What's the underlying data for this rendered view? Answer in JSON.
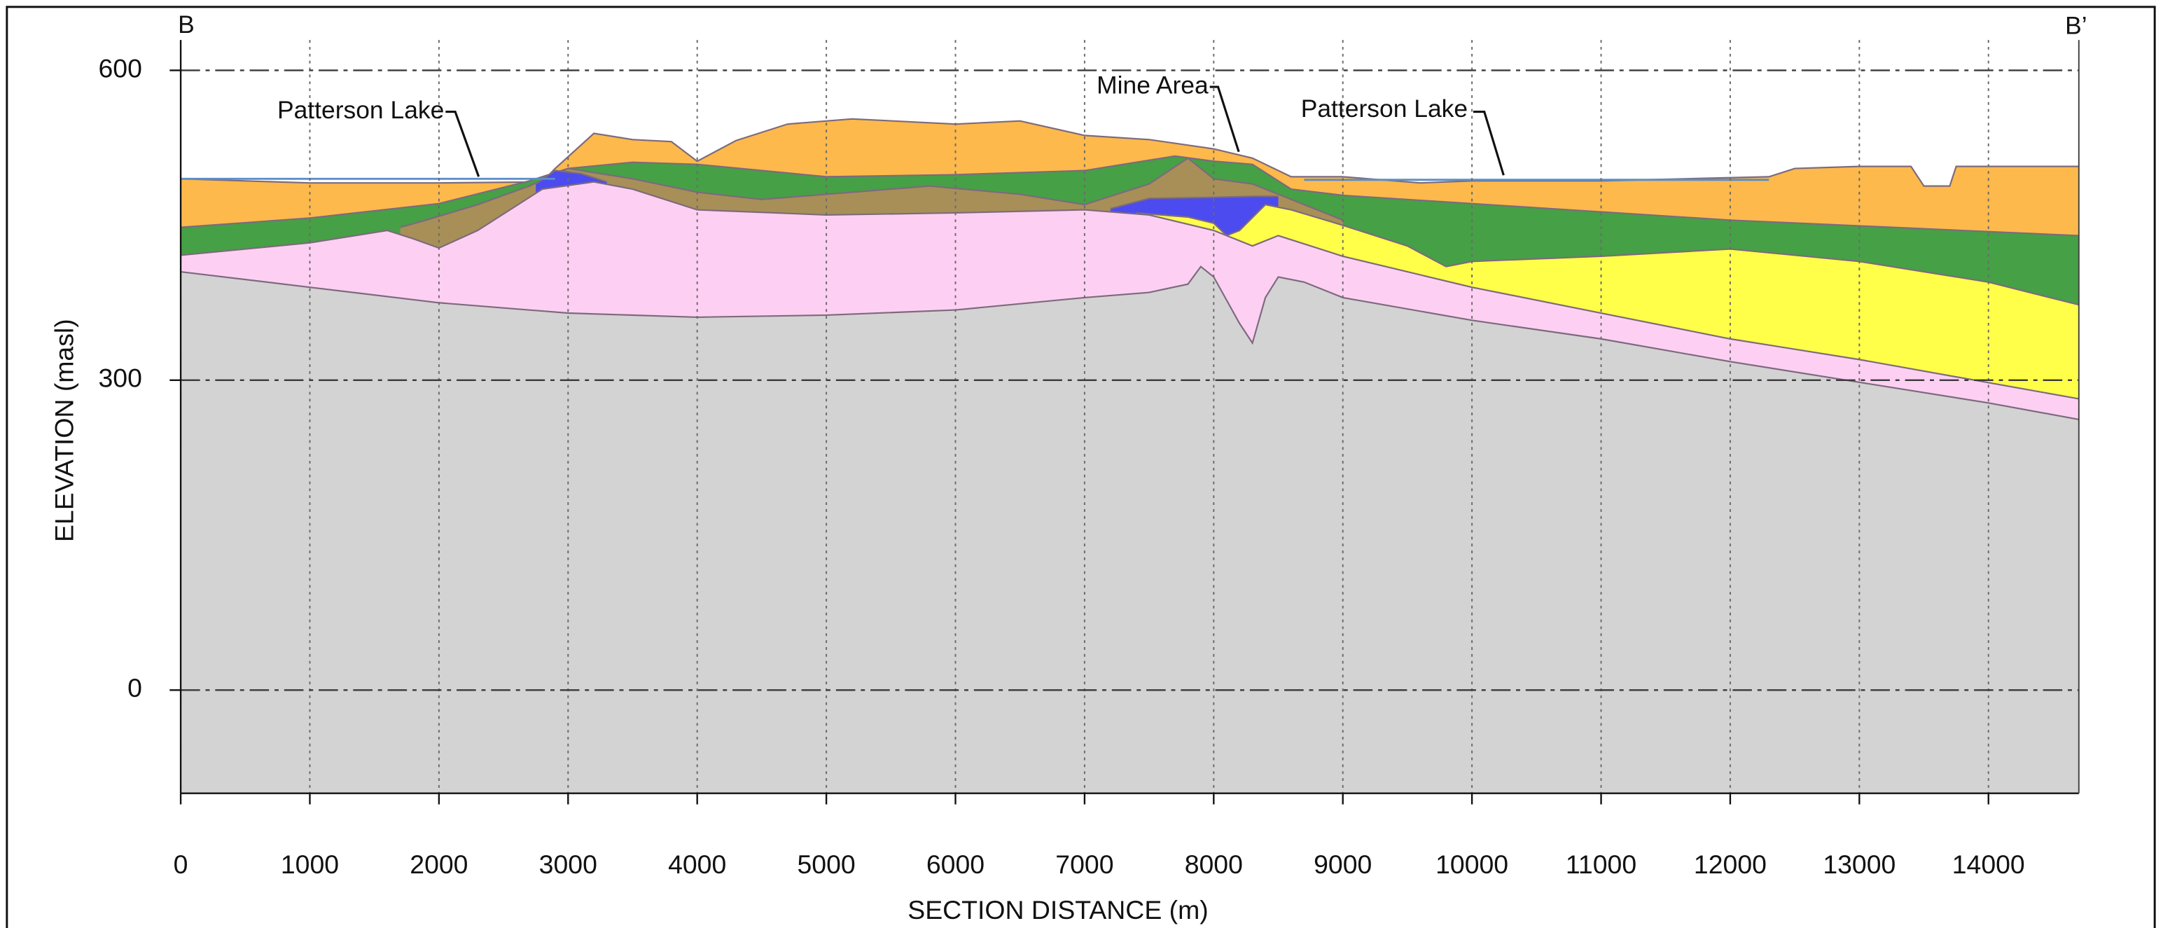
{
  "chart_data": {
    "type": "area",
    "x_label": "SECTION DISTANCE (m)",
    "y_label": "ELEVATION (masl)",
    "annotations": [
      "B",
      "B’",
      "Patterson Lake",
      "Mine Area",
      "Patterson Lake"
    ],
    "xlim": [
      0,
      14700
    ],
    "ylim": [
      -100,
      600
    ],
    "xticks": [
      0,
      1000,
      2000,
      3000,
      4000,
      5000,
      6000,
      7000,
      8000,
      9000,
      10000,
      11000,
      12000,
      13000,
      14000
    ],
    "yticks": [
      0,
      300,
      600
    ],
    "grid": true,
    "series": [
      {
        "color": "#fdb94b",
        "x": [
          0,
          1000,
          2000,
          2800,
          2900,
          3200,
          3500,
          3800,
          4000,
          4300,
          4700,
          5200,
          6000,
          6500,
          7000,
          7500,
          8000,
          8300,
          8600,
          9000,
          9600,
          10000,
          11000,
          12300,
          12500,
          13000,
          13400,
          13500,
          13700,
          13750,
          14000,
          14700
        ],
        "values": [
          495,
          491,
          491,
          492,
          505,
          539,
          533,
          531,
          512,
          532,
          548,
          553,
          548,
          551,
          537,
          533,
          524,
          515,
          497,
          497,
          491,
          493,
          493,
          497,
          505,
          507,
          507,
          488,
          488,
          507,
          507,
          507
        ]
      },
      {
        "color": "#46a046",
        "x": [
          0,
          1000,
          2000,
          2700,
          3000,
          3500,
          4000,
          5000,
          6000,
          7000,
          7700,
          8000,
          8300,
          8600,
          9000,
          10000,
          12000,
          14700
        ],
        "values": [
          448,
          457,
          471,
          493,
          505,
          511,
          509,
          497,
          499,
          503,
          517,
          512,
          509,
          485,
          479,
          471,
          455,
          440
        ]
      },
      {
        "color": "#a88f58",
        "x": [
          1700,
          1900,
          2300,
          2700,
          3000,
          3500,
          4000,
          4500,
          5000,
          5800,
          6500,
          7000,
          7500,
          7800,
          8000,
          8300,
          8500,
          8700,
          9000
        ],
        "values": [
          448,
          455,
          470,
          488,
          505,
          495,
          482,
          475,
          480,
          488,
          480,
          470,
          490,
          515,
          495,
          490,
          480,
          470,
          455
        ]
      },
      {
        "color": "#4b4bf0",
        "x": [
          2750,
          2900,
          3100,
          3300,
          null,
          7200,
          7500,
          8000,
          8300,
          8500
        ],
        "values": [
          490,
          503,
          500,
          492,
          null,
          466,
          476,
          477,
          478,
          478
        ]
      },
      {
        "color": "#ffff4a",
        "x": [
          7400,
          7800,
          8000,
          8100,
          8200,
          8400,
          8600,
          9000,
          9500,
          9800,
          10000,
          11000,
          12000,
          13000,
          14000,
          14700
        ],
        "values": [
          462,
          458,
          452,
          440,
          445,
          470,
          465,
          450,
          430,
          410,
          415,
          420,
          427,
          415,
          395,
          373
        ]
      },
      {
        "color": "#fdd0f3",
        "x": [
          0,
          1000,
          1600,
          1800,
          2000,
          2300,
          2800,
          3200,
          3500,
          4000,
          5000,
          6000,
          7000,
          7500,
          8000,
          8300,
          8500,
          9000,
          10000,
          11000,
          12000,
          13000,
          14700
        ],
        "values": [
          421,
          433,
          445,
          437,
          428,
          445,
          485,
          492,
          485,
          465,
          460,
          462,
          465,
          460,
          445,
          430,
          440,
          420,
          390,
          365,
          340,
          320,
          282
        ]
      },
      {
        "color": "#d3d3d3",
        "x": [
          0,
          1000,
          2000,
          3000,
          4000,
          5000,
          6000,
          7000,
          7500,
          7800,
          7900,
          8000,
          8200,
          8300,
          8400,
          8500,
          8700,
          9000,
          10000,
          11000,
          12000,
          13000,
          14000,
          14700
        ],
        "values": [
          405,
          390,
          375,
          365,
          361,
          363,
          368,
          380,
          385,
          393,
          410,
          400,
          355,
          336,
          380,
          400,
          395,
          380,
          358,
          340,
          318,
          298,
          278,
          262
        ]
      }
    ],
    "water_lines": [
      {
        "color": "#5b8fc9",
        "x": [
          0,
          2900
        ],
        "values": [
          495,
          495
        ]
      },
      {
        "color": "#5b8fc9",
        "x": [
          8700,
          12300
        ],
        "values": [
          494,
          494
        ]
      }
    ]
  }
}
